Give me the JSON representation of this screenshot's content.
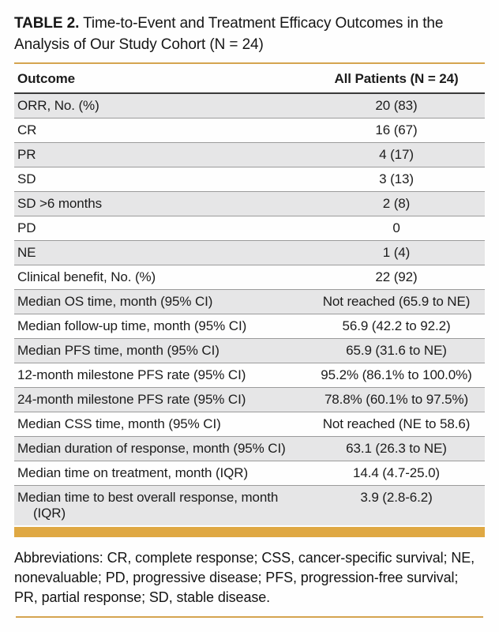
{
  "title": {
    "label": "TABLE 2.",
    "text": "Time-to-Event and Treatment Efficacy Outcomes in the Analysis of Our Study Cohort (N = 24)"
  },
  "table": {
    "columns": [
      "Outcome",
      "All Patients (N = 24)"
    ],
    "rows": [
      {
        "label": "ORR, No. (%)",
        "value": "20 (83)"
      },
      {
        "label": "CR",
        "value": "16 (67)"
      },
      {
        "label": "PR",
        "value": "4 (17)"
      },
      {
        "label": "SD",
        "value": "3 (13)"
      },
      {
        "label": "SD >6 months",
        "value": "2 (8)"
      },
      {
        "label": "PD",
        "value": "0"
      },
      {
        "label": "NE",
        "value": "1 (4)"
      },
      {
        "label": "Clinical benefit, No. (%)",
        "value": "22 (92)"
      },
      {
        "label": "Median OS time, month (95% CI)",
        "value": "Not reached (65.9 to NE)"
      },
      {
        "label": "Median follow-up time, month (95% CI)",
        "value": "56.9 (42.2 to 92.2)"
      },
      {
        "label": "Median PFS time, month (95% CI)",
        "value": "65.9 (31.6 to NE)"
      },
      {
        "label": "12-month milestone PFS rate (95% CI)",
        "value": "95.2% (86.1% to 100.0%)"
      },
      {
        "label": "24-month milestone PFS rate (95% CI)",
        "value": "78.8% (60.1% to 97.5%)"
      },
      {
        "label": "Median CSS time, month (95% CI)",
        "value": "Not reached (NE to 58.6)"
      },
      {
        "label": "Median duration of response, month (95% CI)",
        "value": "63.1 (26.3 to NE)"
      },
      {
        "label": "Median time on treatment, month (IQR)",
        "value": "14.4 (4.7-25.0)"
      },
      {
        "label": "Median time to best overall response, month (IQR)",
        "value": "3.9 (2.8-6.2)"
      }
    ]
  },
  "footnote": "Abbreviations: CR, complete response; CSS, cancer-specific survival; NE, nonevaluable; PD, progressive disease; PFS, progression-free survival; PR, partial response; SD, stable disease.",
  "colors": {
    "gold_bar": "#DFA843",
    "gold_line": "#D5A450",
    "row_gray": "#E6E6E7",
    "separator": "#9B9B9B",
    "header_border": "#3A3A3A",
    "text": "#1C1C1C"
  }
}
